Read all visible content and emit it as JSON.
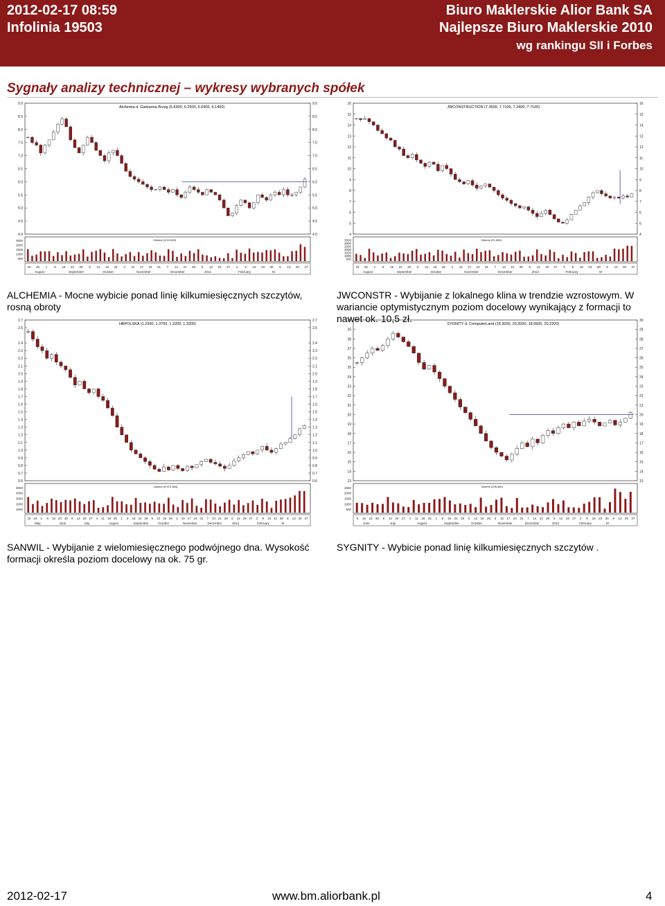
{
  "header": {
    "datetime": "2012-02-17 08:59",
    "phone": "Infolinia 19503",
    "broker": "Biuro Maklerskie Alior Bank SA",
    "award": "Najlepsze Biuro Maklerskie 2010",
    "award_source": "wg rankingu SII i Forbes"
  },
  "section_title": "Sygnały analizy technicznej – wykresy wybranych spółek",
  "panels": [
    {
      "description": "ALCHEMIA - Mocne wybicie ponad linię kilkumiesięcznych szczytów, rosną obroty",
      "chart": {
        "type": "candlestick",
        "title": "Alchemia d. Garbarnia Brzeg (5.6900, 6.2500, 5.6900, 6.1400)",
        "volume_label": "Volume (3,10,000)",
        "ylim": [
          4.0,
          9.0
        ],
        "yticks": [
          "9.0",
          "8.5",
          "8.0",
          "7.5",
          "7.0",
          "6.5",
          "6.0",
          "5.5",
          "5.0",
          "4.5",
          "4.0"
        ],
        "vol_ticks": [
          "2500",
          "2000",
          "1500",
          "1000",
          "500"
        ],
        "day_ticks": [
          "18",
          "25",
          "1",
          "8",
          "16",
          "22",
          "29",
          "5",
          "12",
          "19",
          "26",
          "3",
          "10",
          "17",
          "24",
          "31",
          "7",
          "14",
          "21",
          "28",
          "5",
          "12",
          "19",
          "27",
          "2",
          "9",
          "16",
          "23",
          "30",
          "6",
          "13",
          "20",
          "27"
        ],
        "month_ticks": [
          "August",
          "September",
          "October",
          "November",
          "December",
          "2012",
          "February",
          "M"
        ],
        "close": [
          7.7,
          7.5,
          7.4,
          7.1,
          7.4,
          7.6,
          7.9,
          8.2,
          8.4,
          8.1,
          7.6,
          7.3,
          7.1,
          7.4,
          7.7,
          7.5,
          7.2,
          7.0,
          6.8,
          7.1,
          7.2,
          7.0,
          6.7,
          6.4,
          6.2,
          6.1,
          6.0,
          5.9,
          5.8,
          5.7,
          5.7,
          5.8,
          5.7,
          5.6,
          5.7,
          5.5,
          5.4,
          5.6,
          5.8,
          5.7,
          5.6,
          5.5,
          5.7,
          5.6,
          5.5,
          5.3,
          5.0,
          4.7,
          4.8,
          5.1,
          5.3,
          5.2,
          5.0,
          5.2,
          5.5,
          5.4,
          5.3,
          5.5,
          5.6,
          5.5,
          5.7,
          5.5,
          5.5,
          5.6,
          5.8,
          6.1
        ],
        "resistance": 6.0,
        "vertical_line": false
      },
      "price_unit": ""
    },
    {
      "description": "JWCONSTR - Wybijanie z lokalnego klina w trendzie wzrostowym. W wariancie optymistycznym poziom docelowy wynikający z formacji to nawet ok. 10,5 zł.",
      "chart": {
        "type": "candlestick",
        "title": "JWCONSTRUCTION (7.3500, 7.7100, 7.2400, 7.7100)",
        "volume_label": "Volume (21,816)",
        "ylim": [
          4.0,
          16.0
        ],
        "yticks": [
          "16",
          "15",
          "14",
          "13",
          "12",
          "11",
          "10",
          "9",
          "8",
          "7",
          "6",
          "5",
          "4"
        ],
        "vol_ticks": [
          "3500",
          "3000",
          "2500",
          "2000",
          "1500",
          "1000",
          "500"
        ],
        "day_ticks": [
          "18",
          "25",
          "1",
          "8",
          "16",
          "22",
          "29",
          "5",
          "12",
          "19",
          "26",
          "3",
          "10",
          "17",
          "24",
          "31",
          "7",
          "14",
          "21",
          "28",
          "5",
          "12",
          "19",
          "27",
          "2",
          "9",
          "16",
          "23",
          "30",
          "6",
          "13",
          "20",
          "27"
        ],
        "month_ticks": [
          "August",
          "September",
          "October",
          "November",
          "December",
          "2012",
          "February",
          "M"
        ],
        "close": [
          14.6,
          14.5,
          14.6,
          14.3,
          14.0,
          13.5,
          13.2,
          12.8,
          12.6,
          12.0,
          11.8,
          11.2,
          11.0,
          11.3,
          10.8,
          10.5,
          10.2,
          10.6,
          10.4,
          9.8,
          10.3,
          10.0,
          9.5,
          9.0,
          8.8,
          8.6,
          8.9,
          8.5,
          8.2,
          8.4,
          8.6,
          8.3,
          8.0,
          7.6,
          7.3,
          7.1,
          6.8,
          6.6,
          6.4,
          6.5,
          6.2,
          5.9,
          5.6,
          5.9,
          6.2,
          5.8,
          5.4,
          5.1,
          5.0,
          5.3,
          5.8,
          6.2,
          6.6,
          6.9,
          7.4,
          7.8,
          8.0,
          7.7,
          7.5,
          7.3,
          7.4,
          7.3,
          7.5,
          7.4,
          7.7
        ],
        "resistance": null,
        "vertical_line": true
      },
      "price_unit": "zł"
    },
    {
      "description": "SANWIL - Wybijanie z wielomiesięcznego podwójnego dna. Wysokość formacji określa poziom docelowy na ok. 75 gr.",
      "chart": {
        "type": "candlestick",
        "title": "HBPOLSKA (1.2300, 1.3700, 1.2200, 1.3200)",
        "volume_label": "Volume (5,972,384)",
        "ylim": [
          0.6,
          2.7
        ],
        "yticks": [
          "2.7",
          "2.6",
          "2.4",
          "2.3",
          "2.2",
          "2.1",
          "2.0",
          "1.9",
          "1.8",
          "1.7",
          "1.6",
          "1.5",
          "1.4",
          "1.3",
          "1.2",
          "1.1",
          "1.0",
          "0.9",
          "0.8",
          "0.7",
          "0.6"
        ],
        "vol_ticks": [
          "5000",
          "4000",
          "3000",
          "2000",
          "1000"
        ],
        "day_ticks": [
          "18",
          "24",
          "2",
          "9",
          "16",
          "23",
          "30",
          "6",
          "13",
          "20",
          "27",
          "4",
          "11",
          "18",
          "25",
          "1",
          "8",
          "16",
          "22",
          "29",
          "5",
          "12",
          "19",
          "26",
          "3",
          "10",
          "17",
          "24",
          "31",
          "7",
          "14",
          "21",
          "28",
          "5",
          "12",
          "19",
          "27",
          "2",
          "9",
          "16",
          "23",
          "30",
          "6",
          "13",
          "20",
          "27"
        ],
        "month_ticks": [
          "May",
          "June",
          "July",
          "August",
          "September",
          "October",
          "November",
          "December",
          "2012",
          "February",
          "M"
        ],
        "close": [
          2.55,
          2.45,
          2.35,
          2.3,
          2.2,
          2.25,
          2.15,
          2.1,
          2.05,
          1.95,
          1.85,
          1.9,
          1.8,
          1.75,
          1.8,
          1.7,
          1.65,
          1.55,
          1.45,
          1.3,
          1.2,
          1.1,
          1.0,
          0.95,
          0.9,
          0.85,
          0.8,
          0.75,
          0.72,
          0.78,
          0.74,
          0.8,
          0.76,
          0.73,
          0.79,
          0.77,
          0.81,
          0.85,
          0.88,
          0.84,
          0.82,
          0.79,
          0.76,
          0.8,
          0.86,
          0.9,
          0.94,
          0.98,
          0.95,
          1.0,
          1.05,
          1.0,
          0.97,
          1.02,
          1.08,
          1.1,
          1.15,
          1.2,
          1.28,
          1.32
        ],
        "resistance": null,
        "vertical_line": true
      },
      "price_unit": "gr"
    },
    {
      "description": "SYGNITY - Wybicie ponad linię kilkumiesięcznych szczytów .",
      "chart": {
        "type": "candlestick",
        "title": "SYGNITY d. ComputerLand (18.9000, 20.3000, 18.6500, 20.2200)",
        "volume_label": "Volume (195,460)",
        "ylim": [
          13.0,
          30.0
        ],
        "yticks": [
          "30",
          "29",
          "28",
          "27",
          "26",
          "25",
          "24",
          "23",
          "22",
          "21",
          "20",
          "19",
          "18",
          "17",
          "16",
          "15",
          "14",
          "13"
        ],
        "vol_ticks": [
          "2500",
          "2000",
          "1500",
          "1000",
          "500"
        ],
        "day_ticks": [
          "9",
          "16",
          "23",
          "30",
          "6",
          "13",
          "20",
          "27",
          "4",
          "11",
          "18",
          "25",
          "1",
          "8",
          "16",
          "22",
          "29",
          "5",
          "12",
          "19",
          "26",
          "3",
          "10",
          "17",
          "24",
          "31",
          "7",
          "14",
          "21",
          "28",
          "5",
          "12",
          "19",
          "27",
          "2",
          "9",
          "16",
          "23",
          "30",
          "6",
          "13",
          "20",
          "27"
        ],
        "month_ticks": [
          "June",
          "July",
          "August",
          "September",
          "October",
          "November",
          "December",
          "2012",
          "February",
          "M"
        ],
        "close": [
          25.5,
          26.0,
          26.5,
          27.0,
          26.8,
          27.3,
          28.0,
          28.6,
          28.2,
          27.7,
          27.2,
          26.5,
          25.5,
          24.8,
          25.2,
          24.5,
          23.8,
          23.0,
          22.3,
          21.6,
          20.8,
          20.2,
          19.5,
          18.8,
          18.0,
          17.2,
          16.5,
          16.0,
          15.6,
          15.2,
          15.8,
          16.4,
          17.0,
          16.6,
          17.4,
          17.0,
          17.8,
          18.3,
          18.0,
          18.6,
          19.0,
          18.6,
          19.2,
          18.8,
          19.3,
          19.5,
          19.2,
          18.8,
          19.1,
          19.4,
          18.9,
          19.2,
          19.6,
          20.2
        ],
        "resistance": 20.0,
        "vertical_line": false
      },
      "price_unit": ""
    }
  ],
  "footer": {
    "date": "2012-02-17",
    "url": "www.bm.aliorbank.pl",
    "page": "4"
  },
  "colors": {
    "brand": "#8b1a1a",
    "candle_up": "#ffffff",
    "candle_down": "#8b1a1a",
    "trendline": "#5555aa",
    "grid": "#888888"
  }
}
